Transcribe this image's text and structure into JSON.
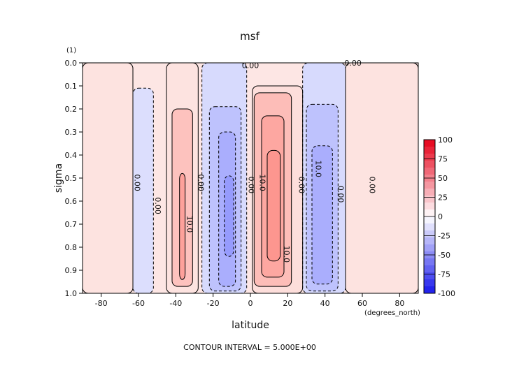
{
  "chart_data": {
    "type": "heatmap",
    "title": "msf",
    "scale_label": "(1)",
    "xlabel": "latitude",
    "x_units": "(degrees_north)",
    "ylabel": "sigma",
    "xlim": [
      -90,
      90
    ],
    "ylim": [
      1.0,
      0.0
    ],
    "x_ticks": [
      -80,
      -60,
      -40,
      -20,
      0,
      20,
      40,
      60,
      80
    ],
    "y_ticks": [
      0.0,
      0.1,
      0.2,
      0.3,
      0.4,
      0.5,
      0.6,
      0.7,
      0.8,
      0.9,
      1.0
    ],
    "x_tick_labels": [
      "-80",
      "-60",
      "-40",
      "-20",
      "0",
      "20",
      "40",
      "60",
      "80"
    ],
    "y_tick_labels": [
      "0.0",
      "0.1",
      "0.2",
      "0.3",
      "0.4",
      "0.5",
      "0.6",
      "0.7",
      "0.8",
      "0.9",
      "1.0"
    ],
    "footer": "CONTOUR INTERVAL = 5.000E+00",
    "colorbar": {
      "levels": [
        100,
        75,
        50,
        25,
        0,
        -25,
        -50,
        -75,
        -100
      ],
      "labels": [
        "100",
        "75",
        "50",
        "25",
        "0",
        "-25",
        "-50",
        "-75",
        "-100"
      ],
      "positive_color": "#e8001c",
      "negative_color": "#1c1ce8"
    },
    "cells": [
      {
        "x0": -90,
        "x1": -63,
        "y0": 0.0,
        "y1": 1.0,
        "value": 2,
        "type": "field-positive"
      },
      {
        "x0": -63,
        "x1": -52,
        "y0": 0.11,
        "y1": 1.0,
        "value": -2,
        "type": "field-negative"
      },
      {
        "x0": -45,
        "x1": -28,
        "y0": 0.0,
        "y1": 1.0,
        "value": 2,
        "type": "field-positive"
      },
      {
        "x0": -26,
        "x1": -2,
        "y0": 0.0,
        "y1": 1.0,
        "value": -3,
        "type": "field-negative"
      },
      {
        "x0": 1,
        "x1": 28,
        "y0": 0.1,
        "y1": 1.0,
        "value": 3,
        "type": "field-positive"
      },
      {
        "x0": 28,
        "x1": 51,
        "y0": 0.0,
        "y1": 1.0,
        "value": -3,
        "type": "field-negative"
      },
      {
        "x0": 51,
        "x1": 90,
        "y0": 0.0,
        "y1": 1.0,
        "value": 2,
        "type": "field-positive"
      }
    ],
    "cells_detail": [
      {
        "x0": -42,
        "x1": -31,
        "y0": 0.2,
        "y1": 0.97,
        "value": 8
      },
      {
        "x0": -38,
        "x1": -35,
        "y0": 0.48,
        "y1": 0.94,
        "value": 14
      },
      {
        "x0": -22,
        "x1": -5,
        "y0": 0.19,
        "y1": 0.99,
        "value": -8
      },
      {
        "x0": -17,
        "x1": -8,
        "y0": 0.3,
        "y1": 0.97,
        "value": -12
      },
      {
        "x0": -14,
        "x1": -9,
        "y0": 0.49,
        "y1": 0.84,
        "value": -16
      },
      {
        "x0": 2,
        "x1": 22,
        "y0": 0.13,
        "y1": 0.97,
        "value": 9
      },
      {
        "x0": 6,
        "x1": 18,
        "y0": 0.23,
        "y1": 0.93,
        "value": 13
      },
      {
        "x0": 9,
        "x1": 16,
        "y0": 0.38,
        "y1": 0.86,
        "value": 16
      },
      {
        "x0": 30,
        "x1": 47,
        "y0": 0.18,
        "y1": 0.99,
        "value": -8
      },
      {
        "x0": 33,
        "x1": 44,
        "y0": 0.36,
        "y1": 0.96,
        "value": -12
      }
    ],
    "contour_labels": [
      {
        "text": "0.00",
        "x": 0.0,
        "y": 0.01
      },
      {
        "text": "0.00",
        "x": 55,
        "y": 0.0
      },
      {
        "text": "0.00",
        "x": -62,
        "y": 0.52
      },
      {
        "text": "0.00",
        "x": -51,
        "y": 0.62
      },
      {
        "text": "0.00",
        "x": -28,
        "y": 0.52
      },
      {
        "text": "10.0",
        "x": -34,
        "y": 0.7
      },
      {
        "text": "0.00",
        "x": -1,
        "y": 0.53
      },
      {
        "text": "10.0",
        "x": 5,
        "y": 0.52
      },
      {
        "text": "10.0",
        "x": 18,
        "y": 0.83
      },
      {
        "text": "0.00",
        "x": 26,
        "y": 0.53
      },
      {
        "text": "10.0",
        "x": 35,
        "y": 0.46
      },
      {
        "text": "0.00",
        "x": 47,
        "y": 0.57
      },
      {
        "text": "0.00",
        "x": 64,
        "y": 0.53
      }
    ]
  }
}
